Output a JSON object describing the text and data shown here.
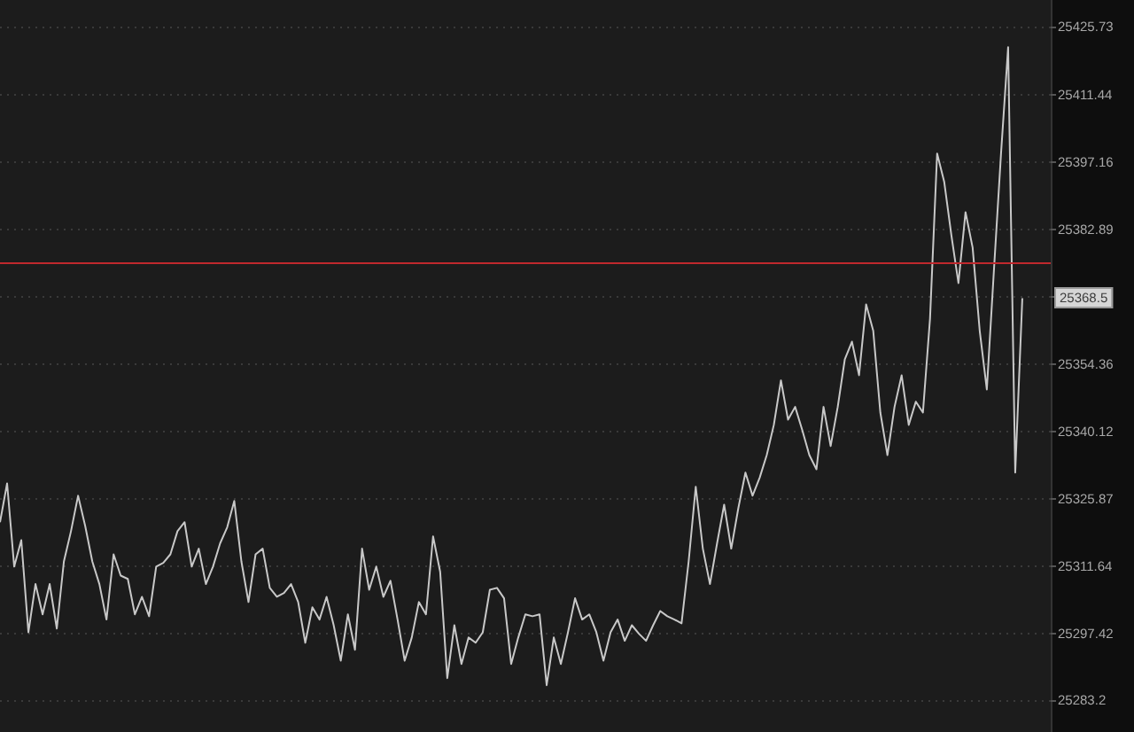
{
  "chart_data": {
    "type": "line",
    "categories": [
      null,
      null,
      null,
      null,
      null,
      null,
      null,
      null,
      null,
      null,
      null,
      null,
      null,
      null,
      null,
      null,
      null,
      null,
      null,
      null,
      null,
      null,
      null,
      null,
      null,
      null,
      null,
      null,
      null,
      null,
      null,
      null,
      null,
      null,
      null,
      null,
      null,
      null,
      null,
      null,
      null,
      null,
      null,
      null,
      null,
      null,
      null,
      null,
      null,
      null,
      null,
      null,
      null,
      null,
      null,
      null,
      null,
      null,
      null,
      null,
      null,
      null,
      null,
      null,
      null,
      null,
      null,
      null,
      null,
      null,
      null,
      null,
      null,
      null,
      null,
      null,
      null,
      null,
      null,
      null,
      null,
      null,
      null,
      null,
      null,
      null,
      null,
      null,
      null,
      null,
      null,
      null,
      null,
      null,
      null,
      null,
      null,
      null,
      null,
      null,
      null,
      null,
      null,
      null,
      null,
      null,
      null,
      null,
      null,
      null,
      null,
      null,
      null,
      null,
      null,
      null,
      null,
      null,
      null,
      null,
      null,
      null,
      null,
      null,
      null,
      null,
      null,
      null,
      null,
      null,
      null,
      null,
      null,
      null,
      null,
      null,
      null,
      null,
      null,
      null,
      null,
      null,
      null,
      null,
      null,
      null,
      null,
      null,
      null
    ],
    "values": [
      25321.1,
      25329.3,
      25311.7,
      25317.3,
      25297.8,
      25308.0,
      25301.6,
      25308.0,
      25298.6,
      25312.8,
      25319.2,
      25326.7,
      25320.3,
      25312.8,
      25308.0,
      25300.5,
      25314.3,
      25309.8,
      25309.1,
      25301.6,
      25305.3,
      25301.2,
      25311.7,
      25312.5,
      25314.3,
      25319.2,
      25321.1,
      25311.7,
      25315.5,
      25308.0,
      25311.7,
      25316.6,
      25320.0,
      25325.6,
      25312.8,
      25304.2,
      25314.3,
      25315.5,
      25307.2,
      25305.3,
      25306.1,
      25308.0,
      25304.2,
      25295.6,
      25303.1,
      25300.5,
      25305.3,
      25299.3,
      25291.8,
      25301.6,
      25294.1,
      25315.5,
      25306.8,
      25311.7,
      25305.3,
      25308.7,
      25300.5,
      25291.8,
      25296.7,
      25304.2,
      25301.6,
      25318.1,
      25310.6,
      25288.1,
      25299.3,
      25291.1,
      25296.7,
      25295.6,
      25297.8,
      25306.8,
      25307.2,
      25305.0,
      25291.1,
      25296.7,
      25301.6,
      25301.2,
      25301.6,
      25286.6,
      25296.7,
      25291.1,
      25297.8,
      25305.0,
      25300.5,
      25301.6,
      25297.8,
      25291.8,
      25297.8,
      25300.5,
      25296.0,
      25299.3,
      25297.5,
      25296.0,
      25299.3,
      25302.3,
      25301.2,
      25300.5,
      25299.7,
      25312.8,
      25328.6,
      25315.5,
      25308.0,
      25316.6,
      25324.8,
      25315.5,
      25324.1,
      25331.6,
      25326.7,
      25330.5,
      25335.3,
      25341.7,
      25351.1,
      25342.8,
      25345.5,
      25340.6,
      25335.3,
      25332.3,
      25345.5,
      25337.2,
      25345.5,
      25355.6,
      25359.3,
      25352.2,
      25367.2,
      25361.6,
      25344.3,
      25335.3,
      25345.5,
      25352.2,
      25341.7,
      25346.6,
      25344.3,
      25364.2,
      25399.1,
      25393.1,
      25381.9,
      25371.7,
      25386.7,
      25379.2,
      25361.6,
      25349.2,
      25374.4,
      25399.1,
      25421.6,
      25331.6,
      25368.5,
      null,
      null,
      null,
      null
    ],
    "color": "#c8c8c8",
    "ylim": [
      25276.7,
      25431.6
    ],
    "yticks": [
      25283.2,
      25297.42,
      25311.64,
      25325.87,
      25340.12,
      25354.36,
      {
        "value": 25368.6,
        "label": null
      },
      25382.89,
      25397.16,
      25411.44,
      25425.73
    ],
    "grid": "y",
    "marker": "none",
    "ref_lines": [
      {
        "axis": "y",
        "value": 25376.0,
        "color": "#c0282d"
      }
    ],
    "annotations": [
      {
        "text": "25368.5",
        "y": 25368.5
      }
    ]
  }
}
